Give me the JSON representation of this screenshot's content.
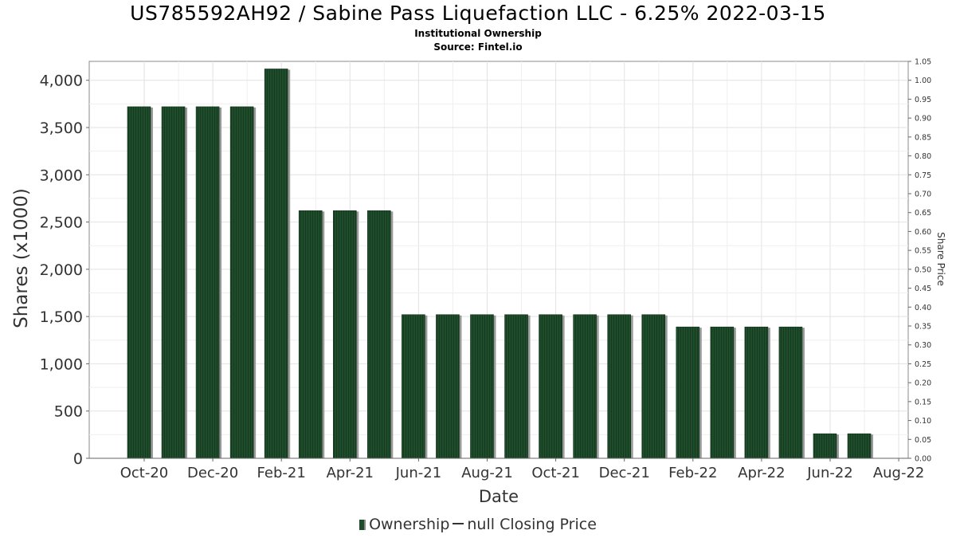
{
  "chart_data": {
    "type": "bar",
    "title": "US785592AH92 / Sabine Pass Liquefaction LLC - 6.25% 2022-03-15",
    "subtitle": "Institutional Ownership",
    "source": "Source: Fintel.io",
    "xlabel": "Date",
    "ylabel": "Shares (x1000)",
    "y2label": "Share Price",
    "x_tick_labels": [
      "Oct-20",
      "Dec-20",
      "Feb-21",
      "Apr-21",
      "Jun-21",
      "Aug-21",
      "Oct-21",
      "Dec-21",
      "Feb-22",
      "Apr-22",
      "Jun-22",
      "Aug-22"
    ],
    "y_ticks": [
      "0",
      "500",
      "1,000",
      "1,500",
      "2,000",
      "2,500",
      "3,000",
      "3,500",
      "4,000"
    ],
    "y2_ticks": [
      "0.00",
      "0.05",
      "0.10",
      "0.15",
      "0.20",
      "0.25",
      "0.30",
      "0.35",
      "0.40",
      "0.45",
      "0.50",
      "0.55",
      "0.60",
      "0.65",
      "0.70",
      "0.75",
      "0.80",
      "0.85",
      "0.90",
      "0.95",
      "1.00",
      "1.05"
    ],
    "ylim": [
      0,
      4200
    ],
    "y2lim": [
      0,
      1.05
    ],
    "grid": true,
    "legend_position": "bottom",
    "series": [
      {
        "name": "Ownership",
        "color": "#1f4d2b",
        "values": [
          3720,
          3720,
          3720,
          3720,
          4120,
          2620,
          2620,
          2620,
          1520,
          1520,
          1520,
          1520,
          1520,
          1520,
          1520,
          1520,
          1390,
          1390,
          1390,
          1390,
          260,
          260
        ]
      },
      {
        "name": "null Closing Price",
        "color": "#333333",
        "values": []
      }
    ]
  }
}
